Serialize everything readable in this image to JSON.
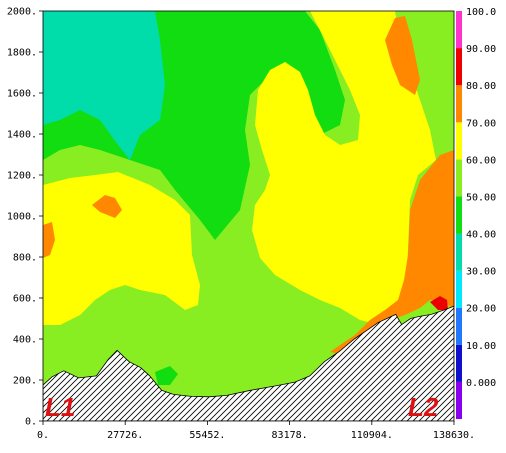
{
  "chart_data": {
    "type": "heatmap",
    "subtype": "filled-contour cross-section with terrain",
    "xlim": [
      0,
      138630
    ],
    "ylim": [
      0,
      2000
    ],
    "x_ticks": [
      "0.",
      "27726.",
      "55452.",
      "83178.",
      "110904.",
      "138630."
    ],
    "y_ticks": [
      "0.",
      "200.",
      "400.",
      "600.",
      "800.",
      "1000.",
      "1200.",
      "1400.",
      "1600.",
      "1800.",
      "2000."
    ],
    "colorbar": {
      "levels": [
        "0.000",
        "10.00",
        "20.00",
        "30.00",
        "40.00",
        "50.00",
        "60.00",
        "70.00",
        "80.00",
        "90.00",
        "100.0"
      ],
      "colors": [
        "#8800ee",
        "#1010cc",
        "#2277ff",
        "#00e8ff",
        "#00ddaa",
        "#11dd11",
        "#88ee22",
        "#ffff00",
        "#ff8800",
        "#ee0000",
        "#ff33cc"
      ]
    },
    "regions": [
      {
        "level_range": [
          50,
          60
        ],
        "color": "#88ee22"
      },
      {
        "level_range": [
          40,
          50
        ],
        "color": "#11dd11"
      },
      {
        "level_range": [
          30,
          40
        ],
        "color": "#00ddaa"
      },
      {
        "level_range": [
          60,
          70
        ],
        "color": "#ffff00"
      },
      {
        "level_range": [
          70,
          80
        ],
        "color": "#ff8800"
      },
      {
        "level_range": [
          80,
          90
        ],
        "color": "#ee0000"
      }
    ],
    "terrain": {
      "x": [
        0,
        3000,
        7000,
        12000,
        18000,
        22000,
        25000,
        29000,
        33000,
        36000,
        40000,
        44000,
        50000,
        56000,
        62000,
        70000,
        78000,
        85000,
        90000,
        95000,
        100000,
        105000,
        110000,
        113000,
        116000,
        119000,
        121000,
        124000,
        127000,
        131000,
        135000,
        138630
      ],
      "y": [
        175,
        215,
        245,
        210,
        220,
        300,
        345,
        290,
        260,
        220,
        150,
        130,
        120,
        118,
        125,
        150,
        170,
        190,
        220,
        290,
        340,
        400,
        450,
        480,
        500,
        520,
        470,
        500,
        510,
        520,
        540,
        560
      ]
    },
    "annotations": [
      "L1",
      "L2"
    ]
  }
}
